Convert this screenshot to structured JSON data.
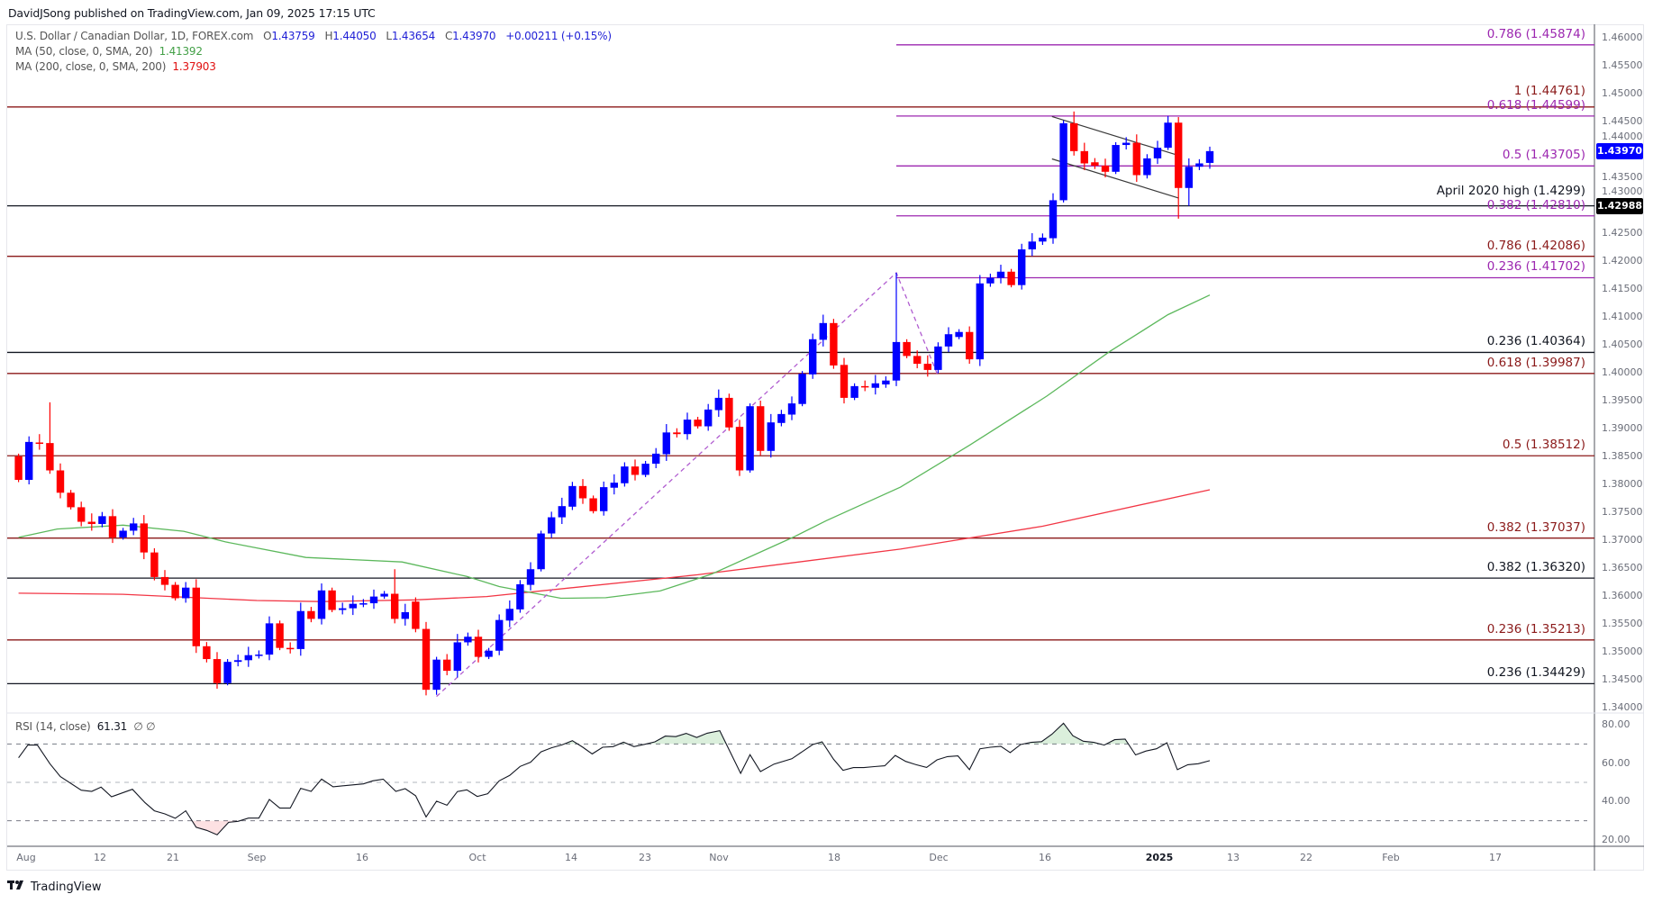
{
  "header": {
    "publisher": "DavidJSong published on TradingView.com, Jan 09, 2025 17:15 UTC"
  },
  "legend": {
    "symbol": "U.S. Dollar / Canadian Dollar, 1D, FOREX.com",
    "o_label": "O",
    "o": "1.43759",
    "h_label": "H",
    "h": "1.44050",
    "l_label": "L",
    "l": "1.43654",
    "c_label": "C",
    "c": "1.43970",
    "change": "+0.00211 (+0.15%)",
    "ma50_label": "MA (50, close, 0, SMA, 20)",
    "ma50_value": "1.41392",
    "ma200_label": "MA (200, close, 0, SMA, 200)",
    "ma200_value": "1.37903"
  },
  "rsi_legend": {
    "label": "RSI (14, close)",
    "value": "61.31",
    "extra": "∅ ∅"
  },
  "price_axis": [
    "1.46000",
    "1.45500",
    "1.45000",
    "1.44500",
    "1.44000",
    "1.43500",
    "1.43000",
    "1.42500",
    "1.42000",
    "1.41500",
    "1.41000",
    "1.40500",
    "1.40000",
    "1.39500",
    "1.39000",
    "1.38500",
    "1.38000",
    "1.37500",
    "1.37000",
    "1.36500",
    "1.36000",
    "1.35500",
    "1.35000",
    "1.34500",
    "1.34000"
  ],
  "badges": {
    "current_price": "1.43970",
    "level": "1.42988"
  },
  "rsi_axis": [
    "80.00",
    "60.00",
    "40.00",
    "20.00"
  ],
  "time_axis": [
    "Aug",
    "12",
    "21",
    "Sep",
    "16",
    "Oct",
    "14",
    "23",
    "Nov",
    "18",
    "Dec",
    "16",
    "2025",
    "13",
    "22",
    "Feb",
    "17"
  ],
  "footer": {
    "brand": "TradingView",
    "logo": "TV"
  },
  "colors": {
    "bull": "#0000ff",
    "bear": "#ff0000",
    "ma50": "#5cb85c",
    "ma200": "#f23645",
    "fib_purple": "#9c27b0",
    "fib_maroon": "#8b1a1a",
    "level_black": "#131722",
    "rsi": "#131722"
  },
  "chart_data": {
    "type": "candlestick",
    "ylim": [
      1.34,
      1.46
    ],
    "candles_oc": [
      [
        1.385,
        1.3808
      ],
      [
        1.3808,
        1.3876
      ],
      [
        1.3875,
        1.3874
      ],
      [
        1.3874,
        1.3825
      ],
      [
        1.3825,
        1.3785
      ],
      [
        1.3785,
        1.3759
      ],
      [
        1.3759,
        1.3733
      ],
      [
        1.3733,
        1.3729
      ],
      [
        1.3729,
        1.3743
      ],
      [
        1.3743,
        1.3705
      ],
      [
        1.3705,
        1.3717
      ],
      [
        1.3717,
        1.373
      ],
      [
        1.373,
        1.3678
      ],
      [
        1.3678,
        1.3634
      ],
      [
        1.3634,
        1.362
      ],
      [
        1.362,
        1.3596
      ],
      [
        1.3596,
        1.3615
      ],
      [
        1.3615,
        1.351
      ],
      [
        1.351,
        1.3487
      ],
      [
        1.3487,
        1.3444
      ],
      [
        1.3444,
        1.3482
      ],
      [
        1.3482,
        1.3485
      ],
      [
        1.3485,
        1.3494
      ],
      [
        1.3494,
        1.3495
      ],
      [
        1.3495,
        1.3551
      ],
      [
        1.3551,
        1.3507
      ],
      [
        1.3507,
        1.3505
      ],
      [
        1.3505,
        1.3573
      ],
      [
        1.3573,
        1.3559
      ],
      [
        1.3559,
        1.361
      ],
      [
        1.361,
        1.3575
      ],
      [
        1.3575,
        1.3578
      ],
      [
        1.3578,
        1.3586
      ],
      [
        1.3586,
        1.3587
      ],
      [
        1.3587,
        1.3599
      ],
      [
        1.3599,
        1.3604
      ],
      [
        1.3604,
        1.3559
      ],
      [
        1.3559,
        1.3571
      ],
      [
        1.359,
        1.3541
      ],
      [
        1.3541,
        1.3432
      ],
      [
        1.3432,
        1.3486
      ],
      [
        1.3486,
        1.3466
      ],
      [
        1.3466,
        1.3517
      ],
      [
        1.3517,
        1.3527
      ],
      [
        1.3527,
        1.3491
      ],
      [
        1.3491,
        1.3502
      ],
      [
        1.3502,
        1.3557
      ],
      [
        1.3556,
        1.3577
      ],
      [
        1.3576,
        1.3621
      ],
      [
        1.362,
        1.3648
      ],
      [
        1.3648,
        1.3712
      ],
      [
        1.3712,
        1.3741
      ],
      [
        1.3741,
        1.3761
      ],
      [
        1.376,
        1.3797
      ],
      [
        1.3797,
        1.3775
      ],
      [
        1.3775,
        1.3752
      ],
      [
        1.3752,
        1.3795
      ],
      [
        1.3794,
        1.3803
      ],
      [
        1.3802,
        1.3832
      ],
      [
        1.3832,
        1.3817
      ],
      [
        1.3817,
        1.3837
      ],
      [
        1.3837,
        1.3855
      ],
      [
        1.3854,
        1.3893
      ],
      [
        1.3893,
        1.389
      ],
      [
        1.389,
        1.3916
      ],
      [
        1.3916,
        1.3904
      ],
      [
        1.3904,
        1.3934
      ],
      [
        1.3933,
        1.3955
      ],
      [
        1.3955,
        1.3902
      ],
      [
        1.3903,
        1.3825
      ],
      [
        1.3825,
        1.394
      ],
      [
        1.394,
        1.386
      ],
      [
        1.386,
        1.3911
      ],
      [
        1.391,
        1.3926
      ],
      [
        1.3925,
        1.3945
      ],
      [
        1.3944,
        1.3998
      ],
      [
        1.3997,
        1.406
      ],
      [
        1.4059,
        1.4089
      ],
      [
        1.4089,
        1.4013
      ],
      [
        1.4014,
        1.3955
      ],
      [
        1.3955,
        1.3976
      ],
      [
        1.3976,
        1.3975
      ],
      [
        1.3973,
        1.3981
      ],
      [
        1.3979,
        1.3986
      ],
      [
        1.3986,
        1.4055
      ],
      [
        1.4055,
        1.403
      ],
      [
        1.403,
        1.4016
      ],
      [
        1.4016,
        1.4005
      ],
      [
        1.4005,
        1.4047
      ],
      [
        1.4047,
        1.4069
      ],
      [
        1.4064,
        1.4073
      ],
      [
        1.4073,
        1.4024
      ],
      [
        1.4024,
        1.416
      ],
      [
        1.416,
        1.417
      ],
      [
        1.417,
        1.4181
      ],
      [
        1.4181,
        1.4157
      ],
      [
        1.4157,
        1.4221
      ],
      [
        1.4221,
        1.4235
      ],
      [
        1.4235,
        1.4242
      ],
      [
        1.4241,
        1.4309
      ],
      [
        1.4309,
        1.4447
      ],
      [
        1.4447,
        1.4397
      ],
      [
        1.4397,
        1.4375
      ],
      [
        1.4377,
        1.4371
      ],
      [
        1.4371,
        1.436
      ],
      [
        1.436,
        1.4408
      ],
      [
        1.4408,
        1.4412
      ],
      [
        1.4412,
        1.4354
      ],
      [
        1.4354,
        1.4384
      ],
      [
        1.4384,
        1.4403
      ],
      [
        1.4403,
        1.4448
      ],
      [
        1.4448,
        1.4331
      ],
      [
        1.4331,
        1.4369
      ],
      [
        1.4369,
        1.4375
      ],
      [
        1.43759,
        1.4397
      ]
    ],
    "extremes": {
      "3": {
        "h": 1.3947
      },
      "36": {
        "h": 1.3648
      },
      "40": {
        "l": 1.3423
      },
      "84": {
        "h": 1.4179
      },
      "101": {
        "h": 1.4468
      },
      "110": {
        "h": 1.446
      },
      "111": {
        "l": 1.4276
      },
      "112": {
        "l": 1.4299
      },
      "114": {
        "h": 1.4405,
        "l": 1.43654
      }
    },
    "ma50": [
      [
        0,
        1.3705
      ],
      [
        3.7,
        1.372
      ],
      [
        10,
        1.3727
      ],
      [
        15.8,
        1.3716
      ],
      [
        19.8,
        1.3697
      ],
      [
        27.5,
        1.3669
      ],
      [
        36.7,
        1.3661
      ],
      [
        42.9,
        1.3635
      ],
      [
        46,
        1.3617
      ],
      [
        51.9,
        1.3596
      ],
      [
        56.2,
        1.3597
      ],
      [
        61.4,
        1.3609
      ],
      [
        66.3,
        1.3639
      ],
      [
        74.1,
        1.3705
      ],
      [
        77.3,
        1.3735
      ],
      [
        84.4,
        1.3795
      ],
      [
        91,
        1.387
      ],
      [
        98.4,
        1.3958
      ],
      [
        104.5,
        1.4039
      ],
      [
        110,
        1.4104
      ],
      [
        114,
        1.41392
      ]
    ],
    "ma200": [
      [
        0,
        1.3605
      ],
      [
        10,
        1.3603
      ],
      [
        22.8,
        1.3592
      ],
      [
        29,
        1.359
      ],
      [
        38,
        1.3593
      ],
      [
        44.8,
        1.3599
      ],
      [
        65,
        1.3638
      ],
      [
        84.4,
        1.3684
      ],
      [
        98,
        1.3725
      ],
      [
        114,
        1.37903
      ]
    ],
    "rsi_ylim": [
      20,
      80
    ],
    "rsi_levels": [
      70,
      50,
      30
    ],
    "rsi": [
      [
        0,
        62.8
      ],
      [
        0.9,
        69.5
      ],
      [
        1.8,
        69.4
      ],
      [
        3,
        59.7
      ],
      [
        4,
        53
      ],
      [
        6,
        45.9
      ],
      [
        7,
        45.3
      ],
      [
        7.9,
        47.5
      ],
      [
        8.9,
        42.5
      ],
      [
        10.9,
        46.4
      ],
      [
        12.1,
        39.4
      ],
      [
        13,
        35.2
      ],
      [
        14,
        33.6
      ],
      [
        15,
        31.3
      ],
      [
        16,
        35.2
      ],
      [
        17,
        26.6
      ],
      [
        18,
        25
      ],
      [
        19,
        22.7
      ],
      [
        20.1,
        29.2
      ],
      [
        21,
        29.7
      ],
      [
        22,
        31.4
      ],
      [
        23,
        31.4
      ],
      [
        24,
        41.1
      ],
      [
        25,
        36.6
      ],
      [
        26,
        36.6
      ],
      [
        27,
        46.9
      ],
      [
        28,
        45.3
      ],
      [
        29,
        51.7
      ],
      [
        30.1,
        47.7
      ],
      [
        33,
        49.2
      ],
      [
        33.9,
        50.8
      ],
      [
        34.9,
        51.7
      ],
      [
        36.1,
        45.3
      ],
      [
        37,
        46.7
      ],
      [
        38,
        43
      ],
      [
        39,
        32
      ],
      [
        40,
        40.2
      ],
      [
        41,
        38.1
      ],
      [
        42,
        45.2
      ],
      [
        42.9,
        46.1
      ],
      [
        43.9,
        42.7
      ],
      [
        44.9,
        44.1
      ],
      [
        46,
        50.8
      ],
      [
        47,
        53.6
      ],
      [
        48,
        58.3
      ],
      [
        49,
        60.5
      ],
      [
        50,
        65.9
      ],
      [
        51,
        68
      ],
      [
        52,
        69.5
      ],
      [
        53,
        71.7
      ],
      [
        54,
        68.3
      ],
      [
        54.9,
        64.8
      ],
      [
        55.9,
        68.3
      ],
      [
        56.9,
        68.6
      ],
      [
        57.9,
        70.9
      ],
      [
        58.9,
        68.6
      ],
      [
        59.9,
        69.8
      ],
      [
        60.9,
        71.1
      ],
      [
        61.9,
        74.1
      ],
      [
        62.9,
        73.8
      ],
      [
        63.9,
        75.5
      ],
      [
        64.9,
        73.4
      ],
      [
        65.9,
        75.6
      ],
      [
        67.1,
        76.9
      ],
      [
        69.1,
        54.7
      ],
      [
        70,
        64.4
      ],
      [
        71,
        55.6
      ],
      [
        72.3,
        59.5
      ],
      [
        74,
        62.3
      ],
      [
        76,
        69.7
      ],
      [
        76.9,
        71.1
      ],
      [
        78,
        62
      ],
      [
        78.9,
        56.3
      ],
      [
        79.9,
        57.7
      ],
      [
        80.9,
        57.7
      ],
      [
        81.9,
        58.2
      ],
      [
        82.9,
        58.6
      ],
      [
        83.9,
        64
      ],
      [
        84.9,
        60.9
      ],
      [
        85.9,
        59.2
      ],
      [
        86.9,
        57.8
      ],
      [
        87.9,
        61.7
      ],
      [
        88.9,
        63.4
      ],
      [
        89.9,
        63.8
      ],
      [
        91,
        56.6
      ],
      [
        92,
        67.5
      ],
      [
        93,
        68.3
      ],
      [
        94,
        68.8
      ],
      [
        94.9,
        65.5
      ],
      [
        95.9,
        69.7
      ],
      [
        96.9,
        70.8
      ],
      [
        97.9,
        71.2
      ],
      [
        98.9,
        75.1
      ],
      [
        100,
        80.8
      ],
      [
        100.9,
        74.3
      ],
      [
        101.9,
        71.4
      ],
      [
        102.9,
        70.8
      ],
      [
        103.9,
        69.4
      ],
      [
        104.9,
        72.2
      ],
      [
        105.9,
        72.5
      ],
      [
        106.9,
        64.3
      ],
      [
        107.9,
        66.3
      ],
      [
        108.9,
        67.5
      ],
      [
        109.9,
        70.6
      ],
      [
        110.9,
        56.6
      ],
      [
        111.9,
        59.2
      ],
      [
        112.9,
        59.7
      ],
      [
        114,
        61.31
      ]
    ],
    "levels": [
      {
        "label": "0.786 (1.45874)",
        "value": 1.45874,
        "color": "purple",
        "start_index": 84
      },
      {
        "label": "1 (1.44761)",
        "value": 1.44761,
        "color": "maroon",
        "start_index": null
      },
      {
        "label": "0.618 (1.44599)",
        "value": 1.44599,
        "color": "purple",
        "start_index": 84
      },
      {
        "label": "0.5 (1.43705)",
        "value": 1.43705,
        "color": "purple",
        "start_index": 84
      },
      {
        "label": "April 2020 high (1.4299)",
        "value": 1.4299,
        "color": "black",
        "start_index": null
      },
      {
        "label": "0.382 (1.42810)",
        "value": 1.4281,
        "color": "purple",
        "start_index": 84
      },
      {
        "label": "0.786 (1.42086)",
        "value": 1.42086,
        "color": "maroon",
        "start_index": null
      },
      {
        "label": "0.236 (1.41702)",
        "value": 1.41702,
        "color": "purple",
        "start_index": 84
      },
      {
        "label": "0.236 (1.40364)",
        "value": 1.40364,
        "color": "black",
        "start_index": null
      },
      {
        "label": "0.618 (1.39987)",
        "value": 1.39987,
        "color": "maroon",
        "start_index": null
      },
      {
        "label": "0.5 (1.38512)",
        "value": 1.38512,
        "color": "maroon",
        "start_index": null
      },
      {
        "label": "0.382 (1.37037)",
        "value": 1.37037,
        "color": "maroon",
        "start_index": null
      },
      {
        "label": "0.382 (1.36320)",
        "value": 1.3632,
        "color": "black",
        "start_index": null
      },
      {
        "label": "0.236 (1.35213)",
        "value": 1.35213,
        "color": "maroon",
        "start_index": null
      },
      {
        "label": "0.236 (1.34429)",
        "value": 1.34429,
        "color": "black",
        "start_index": null
      }
    ],
    "fib_swing_dashed": [
      [
        40,
        1.342
      ],
      [
        84,
        1.4179
      ],
      [
        88,
        1.3994
      ]
    ],
    "channel_lines": [
      [
        [
          98.9,
          1.4459
        ],
        [
          110.7,
          1.4391
        ]
      ],
      [
        [
          98.9,
          1.4383
        ],
        [
          111,
          1.4313
        ]
      ]
    ]
  }
}
